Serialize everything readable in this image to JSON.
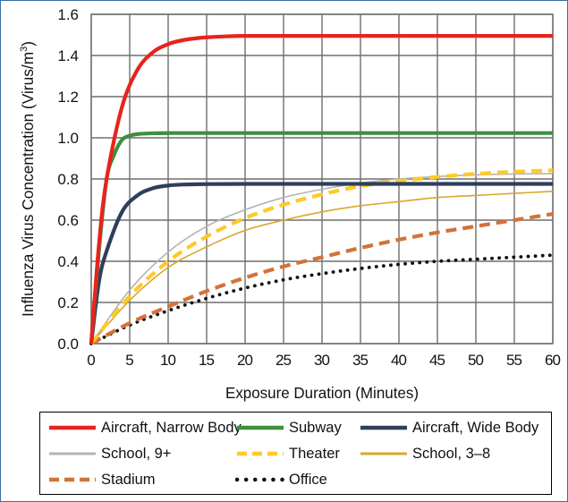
{
  "chart_data": {
    "type": "line",
    "title": "",
    "xlabel": "Exposure Duration (Minutes)",
    "ylabel_prefix": "Influenza Virus Concentration (Virus/m",
    "ylabel_sup": "3",
    "ylabel_suffix": ")",
    "xlim": [
      0,
      60
    ],
    "ylim": [
      0,
      1.6
    ],
    "xticks": [
      0,
      5,
      10,
      15,
      20,
      25,
      30,
      35,
      40,
      45,
      50,
      55,
      60
    ],
    "yticks": [
      "0.0",
      "0.2",
      "0.4",
      "0.6",
      "0.8",
      "1.0",
      "1.2",
      "1.4",
      "1.6"
    ],
    "grid": true,
    "legend_position": "bottom",
    "series": [
      {
        "name": "Aircraft, Narrow Body",
        "color": "#e8231e",
        "style": "solid-thick",
        "x": [
          0,
          1,
          2,
          4,
          6,
          8,
          10,
          12,
          15,
          20,
          30,
          40,
          50,
          60
        ],
        "y": [
          0,
          0.48,
          0.8,
          1.15,
          1.33,
          1.415,
          1.455,
          1.475,
          1.488,
          1.495,
          1.495,
          1.495,
          1.495,
          1.495
        ]
      },
      {
        "name": "Subway",
        "color": "#3e8f3e",
        "style": "solid-thick",
        "x": [
          0,
          1,
          2,
          3,
          4,
          5,
          6,
          8,
          10,
          15,
          20,
          30,
          40,
          50,
          60
        ],
        "y": [
          0,
          0.45,
          0.8,
          0.92,
          0.99,
          1.01,
          1.018,
          1.022,
          1.023,
          1.023,
          1.023,
          1.023,
          1.023,
          1.023,
          1.023
        ]
      },
      {
        "name": "Aircraft, Wide Body",
        "color": "#2e3f5c",
        "style": "solid-thick",
        "x": [
          0,
          1,
          2,
          4,
          6,
          8,
          10,
          12,
          15,
          20,
          30,
          40,
          50,
          60
        ],
        "y": [
          0,
          0.3,
          0.45,
          0.64,
          0.72,
          0.755,
          0.768,
          0.773,
          0.775,
          0.776,
          0.776,
          0.776,
          0.776,
          0.776
        ]
      },
      {
        "name": "School, 9+",
        "color": "#b4b4b4",
        "style": "solid-thin",
        "x": [
          0,
          5,
          10,
          15,
          20,
          25,
          30,
          35,
          40,
          45,
          50,
          55,
          60
        ],
        "y": [
          0,
          0.26,
          0.445,
          0.57,
          0.65,
          0.71,
          0.75,
          0.78,
          0.8,
          0.812,
          0.82,
          0.824,
          0.826
        ]
      },
      {
        "name": "Theater",
        "color": "#ffc926",
        "style": "dashed",
        "x": [
          0,
          5,
          10,
          15,
          20,
          25,
          30,
          35,
          40,
          45,
          50,
          55,
          60
        ],
        "y": [
          0,
          0.23,
          0.4,
          0.52,
          0.61,
          0.675,
          0.725,
          0.765,
          0.79,
          0.81,
          0.825,
          0.835,
          0.842
        ]
      },
      {
        "name": "School, 3–8",
        "color": "#d9a72a",
        "style": "solid-thin",
        "x": [
          0,
          5,
          10,
          15,
          20,
          25,
          30,
          35,
          40,
          45,
          50,
          55,
          60
        ],
        "y": [
          0,
          0.21,
          0.37,
          0.47,
          0.55,
          0.6,
          0.64,
          0.67,
          0.69,
          0.71,
          0.72,
          0.73,
          0.74
        ]
      },
      {
        "name": "Stadium",
        "color": "#d3723a",
        "style": "dashed",
        "x": [
          0,
          5,
          10,
          15,
          20,
          25,
          30,
          35,
          40,
          45,
          50,
          55,
          60
        ],
        "y": [
          0,
          0.1,
          0.18,
          0.255,
          0.32,
          0.375,
          0.42,
          0.465,
          0.505,
          0.54,
          0.57,
          0.6,
          0.63
        ]
      },
      {
        "name": "Office",
        "color": "#111111",
        "style": "dotted",
        "x": [
          0,
          5,
          10,
          15,
          20,
          25,
          30,
          35,
          40,
          45,
          50,
          55,
          60
        ],
        "y": [
          0,
          0.09,
          0.16,
          0.22,
          0.27,
          0.31,
          0.34,
          0.365,
          0.385,
          0.4,
          0.41,
          0.42,
          0.43
        ]
      }
    ]
  }
}
